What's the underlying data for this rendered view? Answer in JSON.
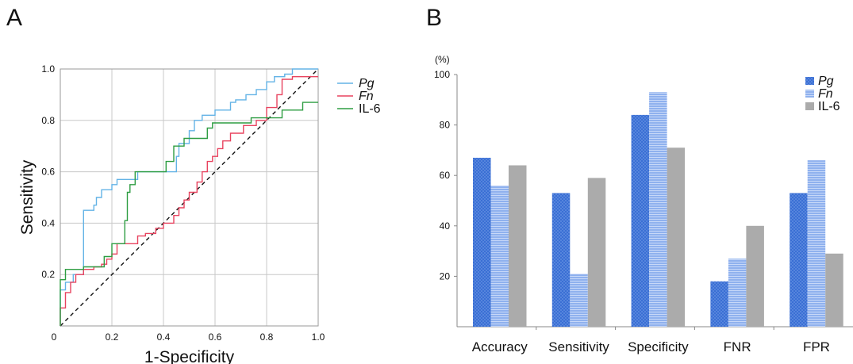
{
  "panel_labels": {
    "a": "A",
    "b": "B"
  },
  "chart_data": [
    {
      "type": "line",
      "xlabel": "1-Specificity",
      "ylabel": "Sensitivity",
      "xlim": [
        0,
        1.0
      ],
      "ylim": [
        0,
        1.0
      ],
      "x_ticks": [
        "0",
        "0.2",
        "0.4",
        "0.6",
        "0.8",
        "1.0"
      ],
      "y_ticks": [
        "0.2",
        "0.4",
        "0.6",
        "0.8",
        "1.0"
      ],
      "grid": true,
      "legend_position": "right",
      "diagonal_reference": true,
      "series": [
        {
          "name": "Pg",
          "italic": true,
          "color": "#63b3e6",
          "points": [
            [
              0,
              0
            ],
            [
              0,
              0.14
            ],
            [
              0.02,
              0.14
            ],
            [
              0.02,
              0.17
            ],
            [
              0.05,
              0.17
            ],
            [
              0.05,
              0.2
            ],
            [
              0.09,
              0.2
            ],
            [
              0.09,
              0.45
            ],
            [
              0.13,
              0.45
            ],
            [
              0.13,
              0.47
            ],
            [
              0.14,
              0.47
            ],
            [
              0.14,
              0.5
            ],
            [
              0.16,
              0.5
            ],
            [
              0.16,
              0.53
            ],
            [
              0.2,
              0.53
            ],
            [
              0.2,
              0.55
            ],
            [
              0.22,
              0.55
            ],
            [
              0.22,
              0.57
            ],
            [
              0.3,
              0.57
            ],
            [
              0.3,
              0.6
            ],
            [
              0.45,
              0.6
            ],
            [
              0.45,
              0.66
            ],
            [
              0.46,
              0.66
            ],
            [
              0.46,
              0.71
            ],
            [
              0.5,
              0.71
            ],
            [
              0.5,
              0.76
            ],
            [
              0.52,
              0.76
            ],
            [
              0.52,
              0.8
            ],
            [
              0.55,
              0.8
            ],
            [
              0.55,
              0.82
            ],
            [
              0.6,
              0.82
            ],
            [
              0.6,
              0.84
            ],
            [
              0.66,
              0.84
            ],
            [
              0.66,
              0.87
            ],
            [
              0.68,
              0.87
            ],
            [
              0.68,
              0.88
            ],
            [
              0.72,
              0.88
            ],
            [
              0.72,
              0.9
            ],
            [
              0.76,
              0.9
            ],
            [
              0.76,
              0.92
            ],
            [
              0.8,
              0.92
            ],
            [
              0.8,
              0.95
            ],
            [
              0.83,
              0.95
            ],
            [
              0.83,
              0.97
            ],
            [
              0.87,
              0.97
            ],
            [
              0.87,
              0.98
            ],
            [
              0.9,
              0.98
            ],
            [
              0.9,
              1.0
            ],
            [
              1.0,
              1.0
            ]
          ]
        },
        {
          "name": "Fn",
          "italic": true,
          "color": "#e8435f",
          "points": [
            [
              0,
              0
            ],
            [
              0,
              0.07
            ],
            [
              0.02,
              0.07
            ],
            [
              0.02,
              0.13
            ],
            [
              0.04,
              0.13
            ],
            [
              0.04,
              0.17
            ],
            [
              0.06,
              0.17
            ],
            [
              0.06,
              0.2
            ],
            [
              0.09,
              0.2
            ],
            [
              0.09,
              0.22
            ],
            [
              0.13,
              0.22
            ],
            [
              0.13,
              0.23
            ],
            [
              0.16,
              0.23
            ],
            [
              0.16,
              0.24
            ],
            [
              0.18,
              0.24
            ],
            [
              0.18,
              0.26
            ],
            [
              0.2,
              0.26
            ],
            [
              0.2,
              0.28
            ],
            [
              0.22,
              0.28
            ],
            [
              0.22,
              0.32
            ],
            [
              0.3,
              0.32
            ],
            [
              0.3,
              0.35
            ],
            [
              0.33,
              0.35
            ],
            [
              0.33,
              0.36
            ],
            [
              0.37,
              0.36
            ],
            [
              0.37,
              0.38
            ],
            [
              0.4,
              0.38
            ],
            [
              0.4,
              0.4
            ],
            [
              0.44,
              0.4
            ],
            [
              0.44,
              0.43
            ],
            [
              0.46,
              0.43
            ],
            [
              0.46,
              0.46
            ],
            [
              0.48,
              0.46
            ],
            [
              0.48,
              0.49
            ],
            [
              0.5,
              0.49
            ],
            [
              0.5,
              0.52
            ],
            [
              0.53,
              0.52
            ],
            [
              0.53,
              0.56
            ],
            [
              0.55,
              0.56
            ],
            [
              0.55,
              0.6
            ],
            [
              0.57,
              0.6
            ],
            [
              0.57,
              0.64
            ],
            [
              0.59,
              0.64
            ],
            [
              0.59,
              0.66
            ],
            [
              0.61,
              0.66
            ],
            [
              0.61,
              0.69
            ],
            [
              0.63,
              0.69
            ],
            [
              0.63,
              0.72
            ],
            [
              0.66,
              0.72
            ],
            [
              0.66,
              0.75
            ],
            [
              0.71,
              0.75
            ],
            [
              0.71,
              0.78
            ],
            [
              0.76,
              0.78
            ],
            [
              0.76,
              0.8
            ],
            [
              0.8,
              0.8
            ],
            [
              0.8,
              0.85
            ],
            [
              0.84,
              0.85
            ],
            [
              0.84,
              0.9
            ],
            [
              0.86,
              0.9
            ],
            [
              0.86,
              0.96
            ],
            [
              0.9,
              0.96
            ],
            [
              0.9,
              0.97
            ],
            [
              1.0,
              0.97
            ]
          ]
        },
        {
          "name": "IL-6",
          "italic": false,
          "color": "#2e9d42",
          "points": [
            [
              0,
              0
            ],
            [
              0,
              0.18
            ],
            [
              0.02,
              0.18
            ],
            [
              0.02,
              0.22
            ],
            [
              0.09,
              0.22
            ],
            [
              0.09,
              0.23
            ],
            [
              0.17,
              0.23
            ],
            [
              0.17,
              0.27
            ],
            [
              0.2,
              0.27
            ],
            [
              0.2,
              0.32
            ],
            [
              0.25,
              0.32
            ],
            [
              0.25,
              0.41
            ],
            [
              0.26,
              0.41
            ],
            [
              0.26,
              0.52
            ],
            [
              0.27,
              0.52
            ],
            [
              0.27,
              0.55
            ],
            [
              0.29,
              0.55
            ],
            [
              0.29,
              0.6
            ],
            [
              0.41,
              0.6
            ],
            [
              0.41,
              0.64
            ],
            [
              0.44,
              0.64
            ],
            [
              0.44,
              0.7
            ],
            [
              0.48,
              0.7
            ],
            [
              0.48,
              0.73
            ],
            [
              0.57,
              0.73
            ],
            [
              0.57,
              0.77
            ],
            [
              0.59,
              0.77
            ],
            [
              0.59,
              0.79
            ],
            [
              0.74,
              0.79
            ],
            [
              0.74,
              0.81
            ],
            [
              0.86,
              0.81
            ],
            [
              0.86,
              0.84
            ],
            [
              0.94,
              0.84
            ],
            [
              0.94,
              0.87
            ],
            [
              1.0,
              0.87
            ]
          ]
        }
      ]
    },
    {
      "type": "bar",
      "ylabel": "(%)",
      "ylim": [
        0,
        100
      ],
      "y_ticks": [
        "20",
        "40",
        "60",
        "80",
        "100"
      ],
      "grid": false,
      "legend_position": "top-right",
      "categories": [
        "Accuracy",
        "Sensitivity",
        "Specificity",
        "FNR",
        "FPR"
      ],
      "series": [
        {
          "name": "Pg",
          "italic": true,
          "color": "#3a6fd4",
          "pattern": "dots",
          "values": [
            67,
            53,
            84,
            18,
            53
          ]
        },
        {
          "name": "Fn",
          "italic": true,
          "color": "#8fb1ee",
          "pattern": "hlines",
          "values": [
            56,
            21,
            93,
            27,
            66
          ]
        },
        {
          "name": "IL-6",
          "italic": false,
          "color": "#ababab",
          "pattern": "solid",
          "values": [
            64,
            59,
            71,
            40,
            29
          ]
        }
      ]
    }
  ]
}
